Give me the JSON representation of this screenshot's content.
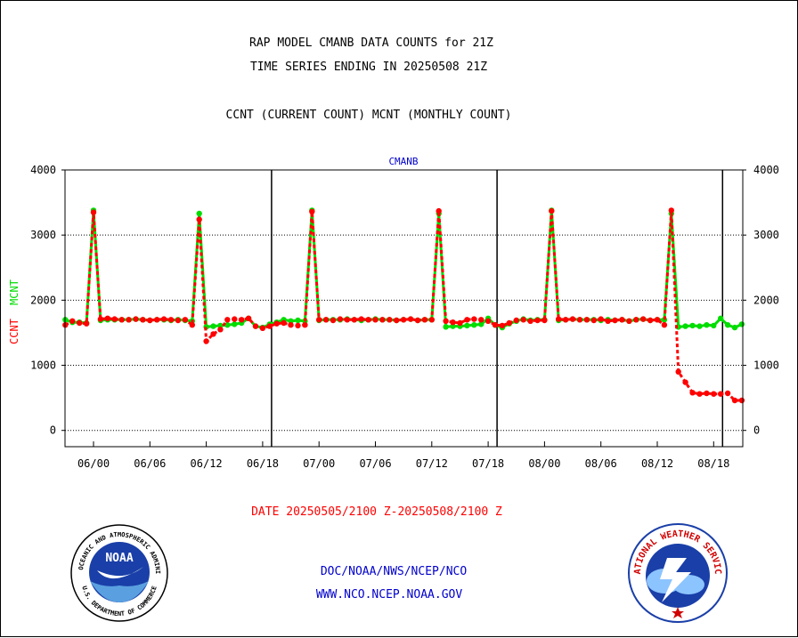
{
  "header": {
    "title_line1": "RAP MODEL CMANB DATA COUNTS for 21Z",
    "title_line2": "TIME SERIES ENDING IN 20250508 21Z",
    "legend_line": "CCNT (CURRENT COUNT) MCNT (MONTHLY COUNT)"
  },
  "chart_data": {
    "type": "line",
    "subtitle": "CMANB",
    "ylabel_ccnt": "CCNT",
    "ylabel_mcnt": "MCNT",
    "ylim": [
      -250,
      4000
    ],
    "y_ticks": [
      "4000",
      "3000",
      "2000",
      "1000",
      "0"
    ],
    "x_ticks": [
      "06/00",
      "06/06",
      "06/12",
      "06/18",
      "07/00",
      "07/06",
      "07/12",
      "07/18",
      "08/00",
      "08/06",
      "08/12",
      "08/18"
    ],
    "grid": true,
    "colors": {
      "ccnt": "#ff0000",
      "mcnt": "#00dd00",
      "subtitle": "#0000cc"
    },
    "series": [
      {
        "name": "CCNT",
        "values": [
          1620,
          1680,
          1650,
          1640,
          3350,
          1710,
          1720,
          1710,
          1700,
          1700,
          1710,
          1700,
          1690,
          1700,
          1710,
          1700,
          1690,
          1700,
          1620,
          3240,
          1370,
          1480,
          1550,
          1700,
          1710,
          1700,
          1720,
          1600,
          1570,
          1600,
          1640,
          1650,
          1620,
          1610,
          1620,
          3360,
          1700,
          1700,
          1690,
          1710,
          1700,
          1700,
          1710,
          1700,
          1700,
          1700,
          1700,
          1690,
          1700,
          1710,
          1690,
          1700,
          1700,
          3370,
          1680,
          1660,
          1650,
          1700,
          1710,
          1700,
          1680,
          1620,
          1610,
          1650,
          1690,
          1700,
          1680,
          1690,
          1690,
          3370,
          1710,
          1700,
          1710,
          1700,
          1700,
          1690,
          1710,
          1680,
          1690,
          1700,
          1680,
          1700,
          1710,
          1690,
          1700,
          1620,
          3380,
          900,
          740,
          580,
          560,
          570,
          560,
          560,
          570,
          460,
          460,
          560
        ]
      },
      {
        "name": "MCNT",
        "values": [
          1700,
          1660,
          1660,
          1650,
          3380,
          1690,
          1700,
          1700,
          1700,
          1700,
          1710,
          1700,
          1690,
          1700,
          1700,
          1690,
          1700,
          1690,
          1680,
          3330,
          1590,
          1600,
          1610,
          1620,
          1630,
          1650,
          1720,
          1600,
          1580,
          1630,
          1660,
          1700,
          1680,
          1690,
          1680,
          3380,
          1690,
          1700,
          1700,
          1700,
          1710,
          1700,
          1690,
          1700,
          1710,
          1700,
          1700,
          1690,
          1700,
          1710,
          1690,
          1700,
          1700,
          3330,
          1590,
          1600,
          1600,
          1610,
          1620,
          1630,
          1720,
          1620,
          1580,
          1640,
          1680,
          1710,
          1690,
          1700,
          1700,
          3380,
          1690,
          1700,
          1710,
          1700,
          1700,
          1700,
          1690,
          1700,
          1690,
          1700,
          1680,
          1700,
          1710,
          1690,
          1700,
          1700,
          3330,
          1590,
          1600,
          1610,
          1600,
          1620,
          1610,
          1720,
          1620,
          1580,
          1630,
          1700
        ]
      }
    ]
  },
  "footer": {
    "date_range": "DATE 20250505/2100 Z-20250508/2100 Z",
    "org_path": "DOC/NOAA/NWS/NCEP/NCO",
    "website": "WWW.NCO.NCEP.NOAA.GOV",
    "noaa_logo_text": "NOAA",
    "noaa_ring_top": "NATIONAL OCEANIC AND ATMOSPHERIC ADMINISTRATION",
    "noaa_ring_bottom": "U.S. DEPARTMENT OF COMMERCE",
    "nws_ring_top": "NATIONAL WEATHER SERVICE"
  }
}
